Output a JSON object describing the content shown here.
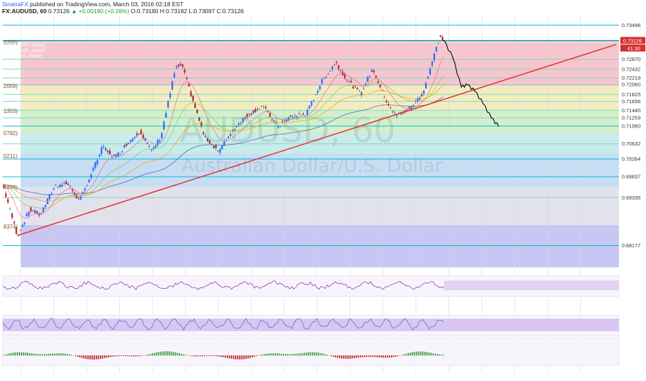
{
  "header": {
    "author": "SinatraFX",
    "published_text": "published on TradingView.com, March 03, 2016 02:18 EST",
    "symbol": "FX:AUDUSD, 60",
    "last_price": "0.73126",
    "change": "▲ +0.00190 (+0.26%)",
    "ohlc": "O:0.73180 H:0.73182 L:0.73097 C:0.73126"
  },
  "legend": {
    "items": [
      "EMA (200, close)",
      "EMA (100, close)",
      "EMA (50, close)"
    ]
  },
  "watermark": {
    "symbol": "AUDUSD, 60",
    "description": "Australian Dollar/U.S. Dollar"
  },
  "badges": {
    "price": "0.73126",
    "countdown": "41:30"
  },
  "colors": {
    "trendline": "#e53935",
    "candle_up": "#2962ff",
    "candle_down": "#b71c1c",
    "level_line": "#00bcd4",
    "rsi_line": "#7b1fa2",
    "projection": "#000000"
  },
  "chart_data": {
    "type": "candlestick",
    "y_axis_ticks": [
      "0.73496",
      "0.73126",
      "0.73108",
      "0.72670",
      "0.72432",
      "0.72219",
      "0.72060",
      "0.71825",
      "0.71656",
      "0.71440",
      "0.71259",
      "0.71060",
      "0.70632",
      "0.70264",
      "0.69837",
      "0.69335",
      "0.68177"
    ],
    "fib_labels": [
      "3200)",
      "2059)",
      "1353)",
      "0782)",
      "0211)",
      "9498)",
      "8374)"
    ],
    "ylim": [
      0.6765,
      0.736
    ],
    "price_path": [
      {
        "bar": 0,
        "price": 0.6965
      },
      {
        "bar": 14,
        "price": 0.6842
      },
      {
        "bar": 26,
        "price": 0.6905
      },
      {
        "bar": 36,
        "price": 0.6892
      },
      {
        "bar": 50,
        "price": 0.6962
      },
      {
        "bar": 62,
        "price": 0.6968
      },
      {
        "bar": 74,
        "price": 0.6925
      },
      {
        "bar": 96,
        "price": 0.7055
      },
      {
        "bar": 108,
        "price": 0.703
      },
      {
        "bar": 120,
        "price": 0.7065
      },
      {
        "bar": 132,
        "price": 0.7095
      },
      {
        "bar": 143,
        "price": 0.7045
      },
      {
        "bar": 152,
        "price": 0.708
      },
      {
        "bar": 166,
        "price": 0.7245
      },
      {
        "bar": 172,
        "price": 0.7255
      },
      {
        "bar": 180,
        "price": 0.719
      },
      {
        "bar": 194,
        "price": 0.708
      },
      {
        "bar": 208,
        "price": 0.7045
      },
      {
        "bar": 222,
        "price": 0.71
      },
      {
        "bar": 236,
        "price": 0.7135
      },
      {
        "bar": 250,
        "price": 0.7155
      },
      {
        "bar": 264,
        "price": 0.7105
      },
      {
        "bar": 278,
        "price": 0.713
      },
      {
        "bar": 292,
        "price": 0.7135
      },
      {
        "bar": 306,
        "price": 0.721
      },
      {
        "bar": 320,
        "price": 0.726
      },
      {
        "bar": 332,
        "price": 0.7215
      },
      {
        "bar": 344,
        "price": 0.7185
      },
      {
        "bar": 356,
        "price": 0.7245
      },
      {
        "bar": 366,
        "price": 0.718
      },
      {
        "bar": 378,
        "price": 0.713
      },
      {
        "bar": 392,
        "price": 0.715
      },
      {
        "bar": 404,
        "price": 0.7185
      },
      {
        "bar": 414,
        "price": 0.727
      },
      {
        "bar": 420,
        "price": 0.732
      },
      {
        "bar": 424,
        "price": 0.7313
      }
    ],
    "projection_path": [
      {
        "bar": 424,
        "price": 0.7313
      },
      {
        "bar": 433,
        "price": 0.727
      },
      {
        "bar": 441,
        "price": 0.72
      },
      {
        "bar": 447,
        "price": 0.7205
      },
      {
        "bar": 454,
        "price": 0.719
      },
      {
        "bar": 462,
        "price": 0.716
      },
      {
        "bar": 470,
        "price": 0.7125
      },
      {
        "bar": 477,
        "price": 0.7105
      }
    ],
    "trendline": [
      {
        "bar": 14,
        "price": 0.6842
      },
      {
        "bar": 590,
        "price": 0.7303
      }
    ]
  }
}
